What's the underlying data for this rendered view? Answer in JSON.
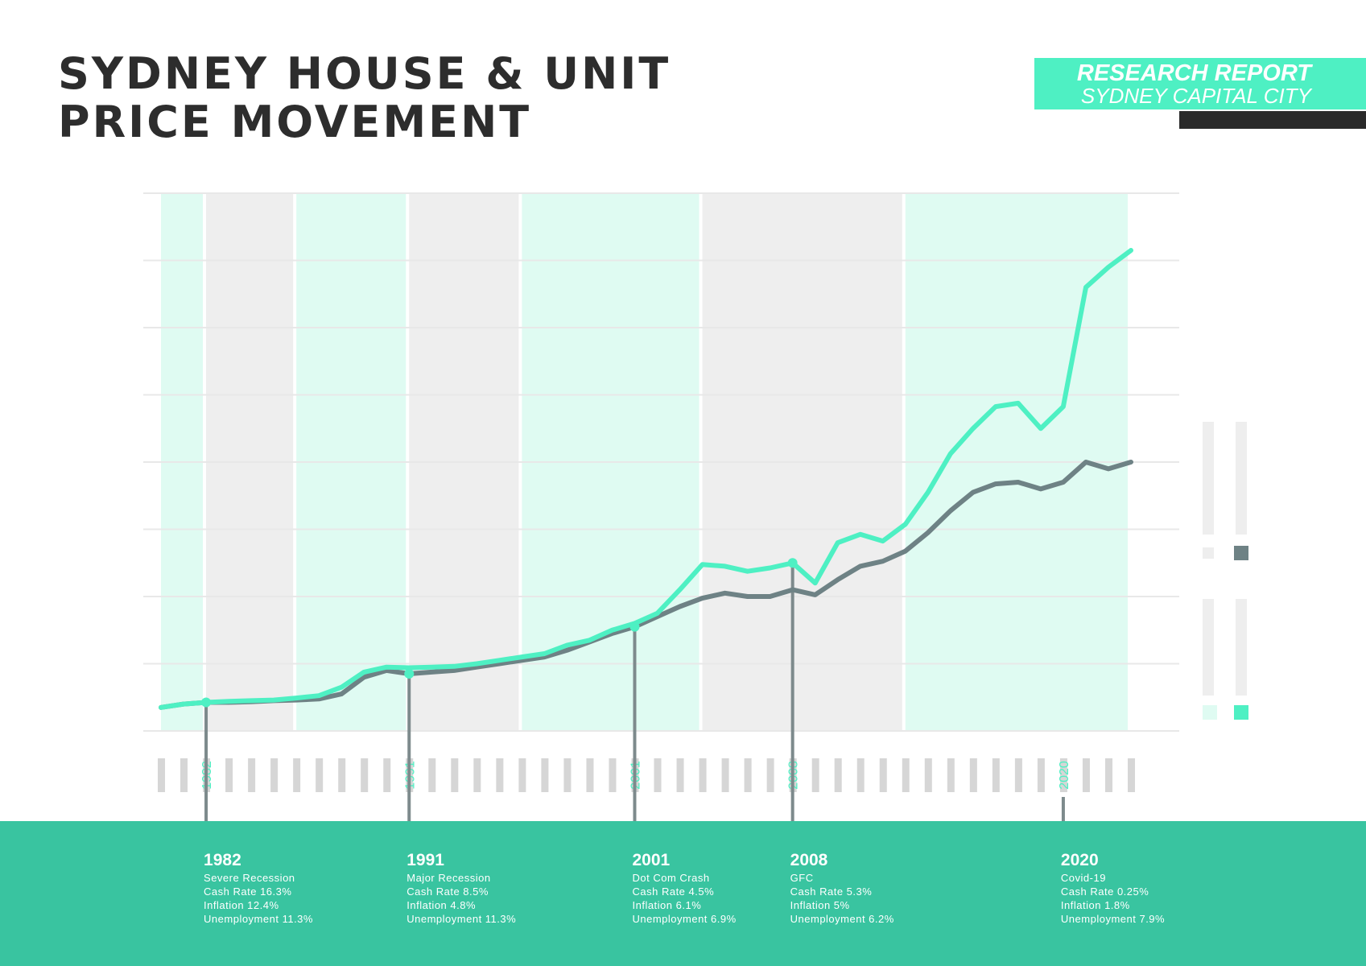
{
  "title": {
    "line1": "SYDNEY HOUSE & UNIT",
    "line2": "PRICE MOVEMENT"
  },
  "badge": {
    "line1": "RESEARCH REPORT",
    "line2": "SYDNEY CAPITAL CITY"
  },
  "colors": {
    "house": "#4ef0c3",
    "unit": "#6e8285",
    "green_band": "#dffbf2",
    "grey_band": "#eeeeee",
    "footer": "#39c4a0"
  },
  "chart_data": {
    "type": "line",
    "x": [
      1980,
      1981,
      1982,
      1983,
      1984,
      1985,
      1986,
      1987,
      1988,
      1989,
      1990,
      1991,
      1992,
      1993,
      1994,
      1995,
      1996,
      1997,
      1998,
      1999,
      2000,
      2001,
      2002,
      2003,
      2004,
      2005,
      2006,
      2007,
      2008,
      2009,
      2010,
      2011,
      2012,
      2013,
      2014,
      2015,
      2016,
      2017,
      2018,
      2019,
      2020,
      2021,
      2022,
      2023
    ],
    "series": [
      {
        "name": "house",
        "values": [
          70,
          80,
          85,
          88,
          90,
          92,
          98,
          105,
          130,
          175,
          190,
          188,
          190,
          192,
          200,
          210,
          220,
          230,
          255,
          270,
          300,
          320,
          350,
          420,
          495,
          490,
          475,
          485,
          500,
          440,
          560,
          585,
          565,
          615,
          710,
          825,
          900,
          965,
          975,
          900,
          965,
          1320,
          1380,
          1430
        ]
      },
      {
        "name": "unit",
        "values": [
          70,
          80,
          85,
          85,
          87,
          90,
          92,
          95,
          110,
          160,
          180,
          170,
          175,
          180,
          190,
          200,
          210,
          220,
          240,
          265,
          290,
          310,
          340,
          370,
          395,
          410,
          400,
          400,
          420,
          405,
          450,
          490,
          505,
          535,
          590,
          655,
          710,
          735,
          740,
          720,
          740,
          800,
          780,
          800
        ]
      }
    ],
    "annotations": [
      {
        "x": 1982,
        "y": 85
      },
      {
        "x": 1991,
        "y": 170
      },
      {
        "x": 2001,
        "y": 310
      },
      {
        "x": 2008,
        "y": 500
      }
    ],
    "highlight_years": [
      "1982",
      "1991",
      "2001",
      "2008",
      "2020"
    ],
    "band_years": [
      [
        1980,
        1982
      ],
      [
        1982,
        1986
      ],
      [
        1986,
        1991
      ],
      [
        1991,
        1996
      ],
      [
        1996,
        2004
      ],
      [
        2004,
        2013
      ],
      [
        2013,
        2023
      ]
    ],
    "ylim": [
      0,
      1600
    ],
    "xlim": [
      1980,
      2023
    ],
    "grid": true
  },
  "events": [
    {
      "year": "1982",
      "lines": [
        "Severe Recession",
        "Cash Rate 16.3%",
        "Inflation 12.4%",
        "Unemployment 11.3%"
      ]
    },
    {
      "year": "1991",
      "lines": [
        "Major Recession",
        "Cash Rate 8.5%",
        "Inflation 4.8%",
        "Unemployment 11.3%"
      ]
    },
    {
      "year": "2001",
      "lines": [
        "Dot Com Crash",
        "Cash Rate 4.5%",
        "Inflation 6.1%",
        "Unemployment 6.9%"
      ]
    },
    {
      "year": "2008",
      "lines": [
        "GFC",
        "Cash Rate 5.3%",
        "Inflation 5%",
        "Unemployment 6.2%"
      ]
    },
    {
      "year": "2020",
      "lines": [
        "Covid-19",
        "Cash Rate 0.25%",
        "Inflation 1.8%",
        "Unemployment 7.9%"
      ]
    }
  ]
}
